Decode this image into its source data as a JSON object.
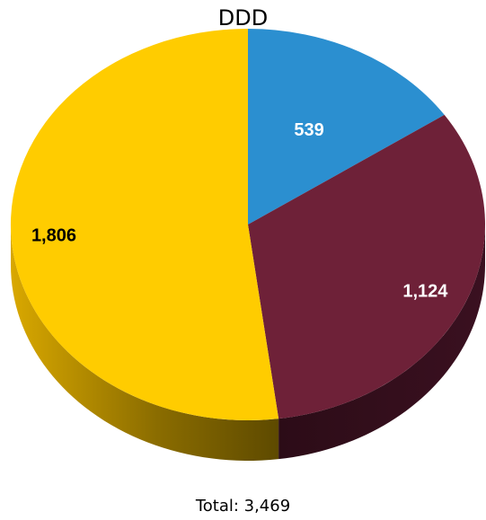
{
  "chart_data": {
    "type": "pie",
    "title": "DDD",
    "total_label": "Total: 3,469",
    "slices": [
      {
        "label": "539",
        "value": 539,
        "color": "#2b8fd0",
        "text_color": "#ffffff"
      },
      {
        "label": "1,124",
        "value": 1124,
        "color": "#6e2138",
        "text_color": "#ffffff"
      },
      {
        "label": "1,806",
        "value": 1806,
        "color": "#ffcc00",
        "text_color": "#000000"
      }
    ],
    "style": "3d"
  }
}
